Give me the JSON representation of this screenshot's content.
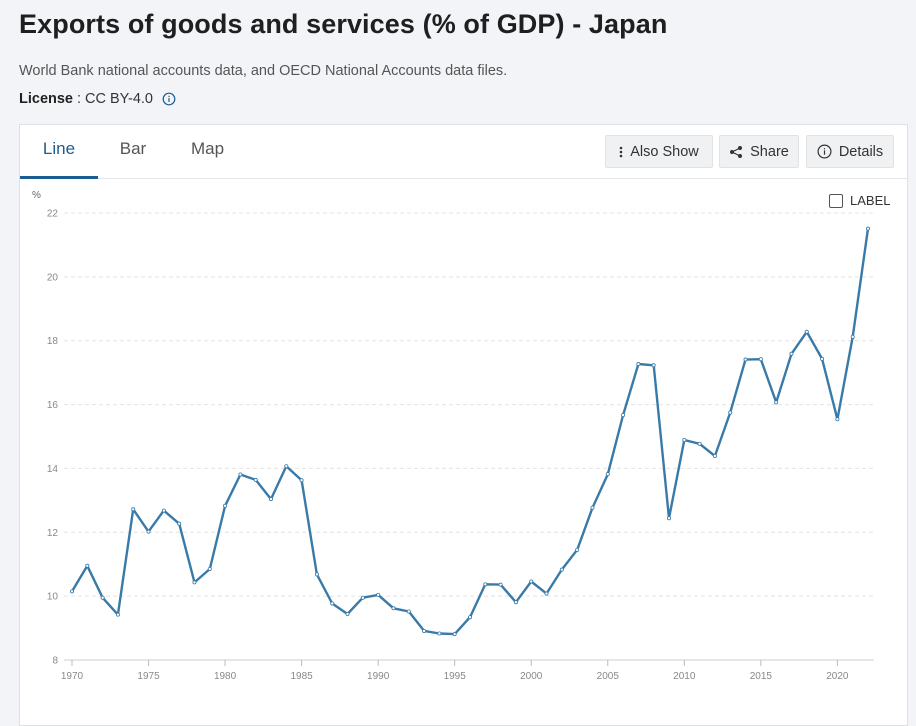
{
  "page": {
    "title": "Exports of goods and services (% of GDP) - Japan",
    "source": "World Bank national accounts data, and OECD National Accounts data files.",
    "license_label": "License",
    "license_sep": ":",
    "license_value": "CC BY-4.0"
  },
  "tabs": [
    {
      "label": "Line",
      "active": true
    },
    {
      "label": "Bar",
      "active": false
    },
    {
      "label": "Map",
      "active": false
    }
  ],
  "toolbar": {
    "also_show": "Also Show",
    "share": "Share",
    "details": "Details"
  },
  "label_toggle": "LABEL",
  "colors": {
    "line": "#3a7aa8",
    "accent": "#1a5d92"
  },
  "chart_data": {
    "type": "line",
    "title": "Exports of goods and services (% of GDP) - Japan",
    "ylabel": "%",
    "xlabel": "",
    "ylim": [
      8,
      22
    ],
    "yticks": [
      8,
      10,
      12,
      14,
      16,
      18,
      20,
      22
    ],
    "xlim": [
      1970,
      2022
    ],
    "xticks": [
      1970,
      1975,
      1980,
      1985,
      1990,
      1995,
      2000,
      2005,
      2010,
      2015,
      2020
    ],
    "grid": true,
    "series": [
      {
        "name": "Japan",
        "x": [
          1970,
          1971,
          1972,
          1973,
          1974,
          1975,
          1976,
          1977,
          1978,
          1979,
          1980,
          1981,
          1982,
          1983,
          1984,
          1985,
          1986,
          1987,
          1988,
          1989,
          1990,
          1991,
          1992,
          1993,
          1994,
          1995,
          1996,
          1997,
          1998,
          1999,
          2000,
          2001,
          2002,
          2003,
          2004,
          2005,
          2006,
          2007,
          2008,
          2009,
          2010,
          2011,
          2012,
          2013,
          2014,
          2015,
          2016,
          2017,
          2018,
          2019,
          2020,
          2021,
          2022
        ],
        "values": [
          10.15,
          10.95,
          9.95,
          9.42,
          12.72,
          12.02,
          12.68,
          12.27,
          10.43,
          10.85,
          12.83,
          13.81,
          13.64,
          13.04,
          14.07,
          13.63,
          10.68,
          9.77,
          9.44,
          9.95,
          10.04,
          9.62,
          9.52,
          8.91,
          8.83,
          8.81,
          9.34,
          10.37,
          10.36,
          9.81,
          10.46,
          10.08,
          10.83,
          11.45,
          12.77,
          13.82,
          15.67,
          17.27,
          17.23,
          12.44,
          14.89,
          14.77,
          14.39,
          15.75,
          17.41,
          17.42,
          16.07,
          17.59,
          18.28,
          17.43,
          15.54,
          18.12,
          21.51
        ]
      }
    ]
  }
}
